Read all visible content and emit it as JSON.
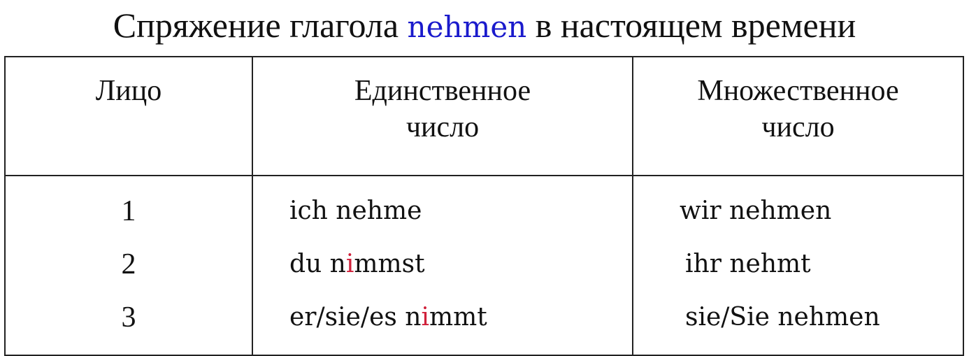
{
  "title": {
    "before": "Спряжение глагола",
    "verb": "nehmen",
    "after": "в настоящем времени"
  },
  "colors": {
    "verb": "#1a1acc",
    "highlight": "#d0203a"
  },
  "table": {
    "headers": [
      "Лицо",
      "Единственное число",
      "Множественное число"
    ],
    "rows": [
      {
        "person": "1",
        "singular": {
          "a": "ich nehme",
          "b": "",
          "c": ""
        },
        "plural": "wir nehmen"
      },
      {
        "person": "2",
        "singular": {
          "a": "du n",
          "b": "i",
          "c": "mmst"
        },
        "plural": "ihr nehmt"
      },
      {
        "person": "3",
        "singular": {
          "a": "er/sie/es n",
          "b": "i",
          "c": "mmt"
        },
        "plural": "sie/Sie nehmen"
      }
    ]
  }
}
